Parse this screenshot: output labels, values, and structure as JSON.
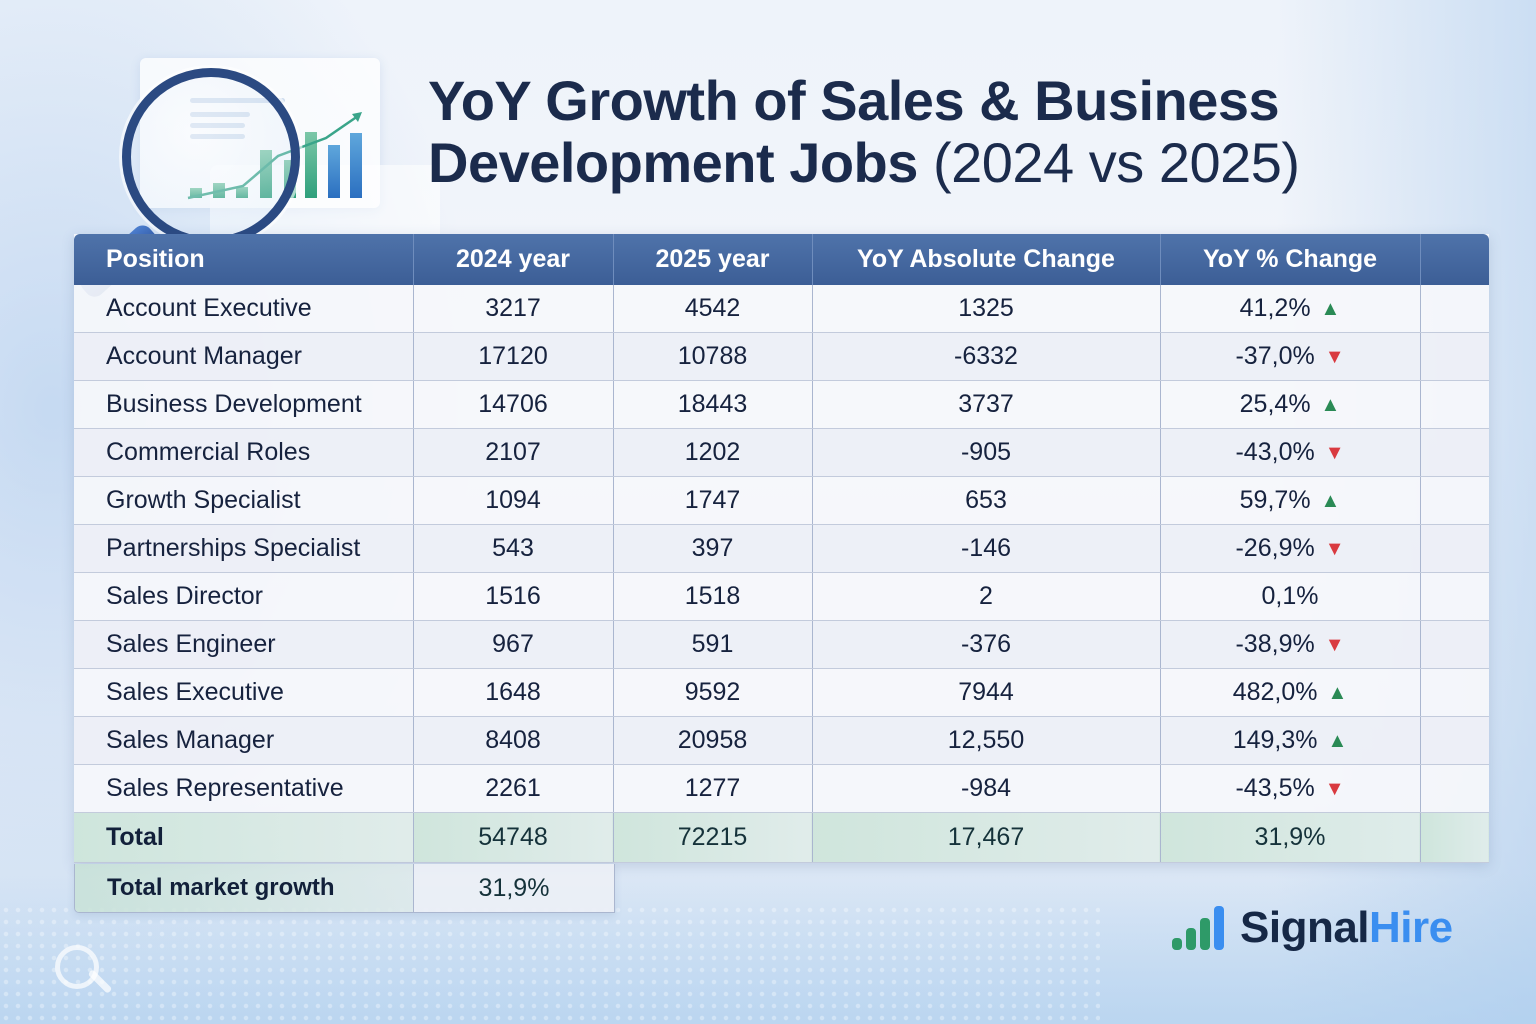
{
  "header": {
    "title_bold": "YoY Growth of Sales & Business Development Jobs",
    "title_light": "(2024 vs 2025)"
  },
  "table": {
    "columns": [
      "Position",
      "2024 year",
      "2025 year",
      "YoY Absolute Change",
      "YoY % Change"
    ],
    "rows": [
      {
        "position": "Account Executive",
        "y2024": "3217",
        "y2025": "4542",
        "abs": "1325",
        "pct": "41,2%",
        "trend": "up"
      },
      {
        "position": "Account Manager",
        "y2024": "17120",
        "y2025": "10788",
        "abs": "-6332",
        "pct": "-37,0%",
        "trend": "down"
      },
      {
        "position": "Business Development",
        "y2024": "14706",
        "y2025": "18443",
        "abs": "3737",
        "pct": "25,4%",
        "trend": "up"
      },
      {
        "position": "Commercial Roles",
        "y2024": "2107",
        "y2025": "1202",
        "abs": "-905",
        "pct": "-43,0%",
        "trend": "down"
      },
      {
        "position": "Growth Specialist",
        "y2024": "1094",
        "y2025": "1747",
        "abs": "653",
        "pct": "59,7%",
        "trend": "up"
      },
      {
        "position": "Partnerships Specialist",
        "y2024": "543",
        "y2025": "397",
        "abs": "-146",
        "pct": "-26,9%",
        "trend": "down"
      },
      {
        "position": "Sales Director",
        "y2024": "1516",
        "y2025": "1518",
        "abs": "2",
        "pct": "0,1%",
        "trend": "flat"
      },
      {
        "position": "Sales Engineer",
        "y2024": "967",
        "y2025": "591",
        "abs": "-376",
        "pct": "-38,9%",
        "trend": "down"
      },
      {
        "position": "Sales Executive",
        "y2024": "1648",
        "y2025": "9592",
        "abs": "7944",
        "pct": "482,0%",
        "trend": "up"
      },
      {
        "position": "Sales Manager",
        "y2024": "8408",
        "y2025": "20958",
        "abs": "12,550",
        "pct": "149,3%",
        "trend": "up"
      },
      {
        "position": "Sales Representative",
        "y2024": "2261",
        "y2025": "1277",
        "abs": "-984",
        "pct": "-43,5%",
        "trend": "down"
      }
    ],
    "total": {
      "position": "Total",
      "y2024": "54748",
      "y2025": "72215",
      "abs": "17,467",
      "pct": "31,9%"
    },
    "market_growth": {
      "label": "Total market growth",
      "value": "31,9%"
    }
  },
  "icons": {
    "up": "▲",
    "down": "▼",
    "up_name": "arrow-up-icon",
    "down_name": "arrow-down-icon"
  },
  "colors": {
    "positive": "#1d5c3e",
    "negative": "#9c1f2a",
    "header_bg": "#3c5e96",
    "total_bg": "#c8e2d7",
    "brand_dark": "#162846",
    "brand_blue": "#3a8ef0",
    "brand_green": "#2e9a68"
  },
  "logo": {
    "part1": "Signal",
    "part2": "Hire"
  },
  "chart_data": {
    "type": "table",
    "title": "YoY Growth of Sales & Business Development Jobs (2024 vs 2025)",
    "columns": [
      "Position",
      "2024 year",
      "2025 year",
      "YoY Absolute Change",
      "YoY % Change"
    ],
    "categories": [
      "Account Executive",
      "Account Manager",
      "Business Development",
      "Commercial Roles",
      "Growth Specialist",
      "Partnerships Specialist",
      "Sales Director",
      "Sales Engineer",
      "Sales Executive",
      "Sales Manager",
      "Sales Representative"
    ],
    "series": [
      {
        "name": "2024 year",
        "values": [
          3217,
          17120,
          14706,
          2107,
          1094,
          543,
          1516,
          967,
          1648,
          8408,
          2261
        ]
      },
      {
        "name": "2025 year",
        "values": [
          4542,
          10788,
          18443,
          1202,
          1747,
          397,
          1518,
          591,
          9592,
          20958,
          1277
        ]
      },
      {
        "name": "YoY Absolute Change",
        "values": [
          1325,
          -6332,
          3737,
          -905,
          653,
          -146,
          2,
          -376,
          7944,
          12550,
          -984
        ]
      },
      {
        "name": "YoY % Change",
        "values": [
          41.2,
          -37.0,
          25.4,
          -43.0,
          59.7,
          -26.9,
          0.1,
          -38.9,
          482.0,
          149.3,
          -43.5
        ]
      }
    ],
    "totals": {
      "2024 year": 54748,
      "2025 year": 72215,
      "YoY Absolute Change": 17467,
      "YoY % Change": 31.9
    },
    "total_market_growth_pct": 31.9
  }
}
